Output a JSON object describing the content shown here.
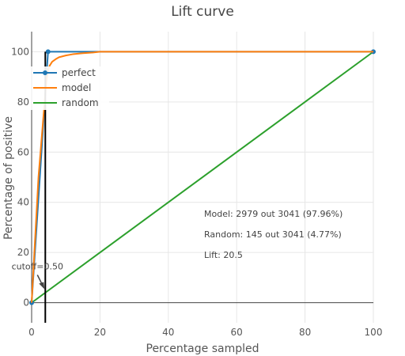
{
  "chart_data": {
    "type": "line",
    "title": "Lift curve",
    "xlabel": "Percentage sampled",
    "ylabel": "Percentage of positive",
    "xlim": [
      0,
      100
    ],
    "ylim": [
      -8,
      108
    ],
    "x_ticks": [
      0,
      20,
      40,
      60,
      80,
      100
    ],
    "y_ticks": [
      0,
      20,
      40,
      60,
      80,
      100
    ],
    "grid": true,
    "legend_position": "top-left",
    "series": [
      {
        "name": "perfect",
        "color": "#1f77b4",
        "markers": true,
        "x": [
          0,
          4.8,
          100
        ],
        "y": [
          0,
          100,
          100
        ]
      },
      {
        "name": "model",
        "color": "#ff7f0e",
        "markers": false,
        "x": [
          0,
          2,
          3.5,
          4.3,
          4.9,
          5.3,
          6,
          7,
          8,
          10,
          12,
          15,
          18,
          20,
          100
        ],
        "y": [
          0,
          50,
          75,
          88,
          93,
          94.5,
          96,
          97,
          97.8,
          98.5,
          99,
          99.4,
          99.7,
          100,
          100
        ]
      },
      {
        "name": "random",
        "color": "#2ca02c",
        "markers": false,
        "x": [
          0,
          100
        ],
        "y": [
          0,
          100
        ]
      }
    ],
    "cutoff": {
      "x": 4.0,
      "label": "cutoff=0.50",
      "arrow_y": 4.77
    },
    "annotations": [
      {
        "text": "Model: 2979 out 3041 (97.96%)"
      },
      {
        "text": "Random: 145 out 3041 (4.77%)"
      },
      {
        "text": "Lift: 20.5"
      }
    ]
  }
}
